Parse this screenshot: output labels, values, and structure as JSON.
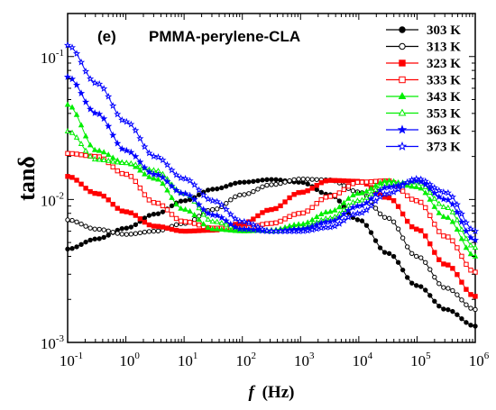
{
  "chart_data": {
    "type": "line",
    "panel_label": "(e)",
    "title": "PMMA-perylene-CLA",
    "xlabel": "f (Hz)",
    "xlabel_italic_part": "f",
    "xlabel_unit_part": "(Hz)",
    "ylabel": "tanδ",
    "x_scale": "log",
    "y_scale": "log",
    "xlim": [
      0.1,
      1000000
    ],
    "ylim": [
      0.001,
      0.2
    ],
    "x_ticks": [
      {
        "base": "10",
        "exp": "-1",
        "value": 0.1
      },
      {
        "base": "10",
        "exp": "0",
        "value": 1
      },
      {
        "base": "10",
        "exp": "1",
        "value": 10
      },
      {
        "base": "10",
        "exp": "2",
        "value": 100
      },
      {
        "base": "10",
        "exp": "3",
        "value": 1000
      },
      {
        "base": "10",
        "exp": "4",
        "value": 10000
      },
      {
        "base": "10",
        "exp": "5",
        "value": 100000
      },
      {
        "base": "10",
        "exp": "6",
        "value": 1000000
      }
    ],
    "y_ticks": [
      {
        "base": "10",
        "exp": "-3",
        "value": 0.001
      },
      {
        "base": "10",
        "exp": "-2",
        "value": 0.01
      },
      {
        "base": "10",
        "exp": "-1",
        "value": 0.1
      }
    ],
    "grid": false,
    "legend_position": "top-right",
    "series": [
      {
        "name": "303 K",
        "color": "#000000",
        "marker": "filled-circle",
        "x": [
          0.1,
          0.316,
          1,
          3.16,
          10,
          31.6,
          100,
          316,
          1000,
          3160,
          10000,
          31600,
          100000,
          316000,
          1000000
        ],
        "y": [
          0.0045,
          0.0053,
          0.0063,
          0.0079,
          0.0098,
          0.0118,
          0.0132,
          0.0138,
          0.0132,
          0.0108,
          0.0072,
          0.0042,
          0.0025,
          0.0017,
          0.0013
        ]
      },
      {
        "name": "313 K",
        "color": "#000000",
        "marker": "open-circle",
        "x": [
          0.1,
          0.316,
          1,
          3.16,
          10,
          31.6,
          100,
          316,
          1000,
          3160,
          10000,
          31600,
          100000,
          316000,
          1000000
        ],
        "y": [
          0.0072,
          0.0062,
          0.0057,
          0.006,
          0.0068,
          0.0085,
          0.0108,
          0.0127,
          0.0139,
          0.0137,
          0.0113,
          0.0074,
          0.004,
          0.0024,
          0.0017
        ]
      },
      {
        "name": "323 K",
        "color": "#ff0000",
        "marker": "filled-square",
        "x": [
          0.1,
          0.316,
          1,
          3.16,
          10,
          31.6,
          100,
          316,
          1000,
          3160,
          10000,
          31600,
          100000,
          316000,
          1000000
        ],
        "y": [
          0.0145,
          0.011,
          0.0082,
          0.0065,
          0.006,
          0.0061,
          0.0068,
          0.0085,
          0.0112,
          0.0136,
          0.0134,
          0.0103,
          0.0062,
          0.0035,
          0.0021
        ]
      },
      {
        "name": "333 K",
        "color": "#ff0000",
        "marker": "open-square",
        "x": [
          0.1,
          0.316,
          1,
          3.16,
          10,
          31.6,
          100,
          316,
          1000,
          3160,
          10000,
          31600,
          100000,
          316000,
          1000000
        ],
        "y": [
          0.021,
          0.02,
          0.015,
          0.0095,
          0.007,
          0.0063,
          0.0063,
          0.0068,
          0.008,
          0.0105,
          0.0132,
          0.0135,
          0.0098,
          0.0055,
          0.0031
        ]
      },
      {
        "name": "343 K",
        "color": "#00ee00",
        "marker": "filled-triangle",
        "x": [
          0.1,
          0.316,
          1,
          3.16,
          10,
          31.6,
          100,
          316,
          1000,
          3160,
          10000,
          31600,
          100000,
          316000,
          1000000
        ],
        "y": [
          0.046,
          0.022,
          0.018,
          0.014,
          0.0085,
          0.0062,
          0.006,
          0.0061,
          0.0067,
          0.0082,
          0.011,
          0.0135,
          0.0122,
          0.0075,
          0.004
        ]
      },
      {
        "name": "353 K",
        "color": "#00ee00",
        "marker": "open-triangle",
        "x": [
          0.1,
          0.316,
          1,
          3.16,
          10,
          31.6,
          100,
          316,
          1000,
          3160,
          10000,
          31600,
          100000,
          316000,
          1000000
        ],
        "y": [
          0.03,
          0.019,
          0.018,
          0.016,
          0.011,
          0.007,
          0.0062,
          0.006,
          0.0063,
          0.0074,
          0.0098,
          0.013,
          0.0132,
          0.0088,
          0.0046
        ]
      },
      {
        "name": "363 K",
        "color": "#0000ff",
        "marker": "filled-star",
        "x": [
          0.1,
          0.316,
          1,
          3.16,
          10,
          31.6,
          100,
          316,
          1000,
          3160,
          10000,
          31600,
          100000,
          316000,
          1000000
        ],
        "y": [
          0.072,
          0.04,
          0.022,
          0.015,
          0.011,
          0.0078,
          0.0062,
          0.006,
          0.0062,
          0.007,
          0.009,
          0.0122,
          0.0135,
          0.01,
          0.0052
        ]
      },
      {
        "name": "373 K",
        "color": "#0000ff",
        "marker": "open-star",
        "x": [
          0.1,
          0.316,
          1,
          3.16,
          10,
          31.6,
          100,
          316,
          1000,
          3160,
          10000,
          31600,
          100000,
          316000,
          1000000
        ],
        "y": [
          0.12,
          0.065,
          0.035,
          0.02,
          0.014,
          0.0098,
          0.007,
          0.006,
          0.006,
          0.0064,
          0.008,
          0.011,
          0.014,
          0.0112,
          0.006
        ]
      }
    ]
  }
}
